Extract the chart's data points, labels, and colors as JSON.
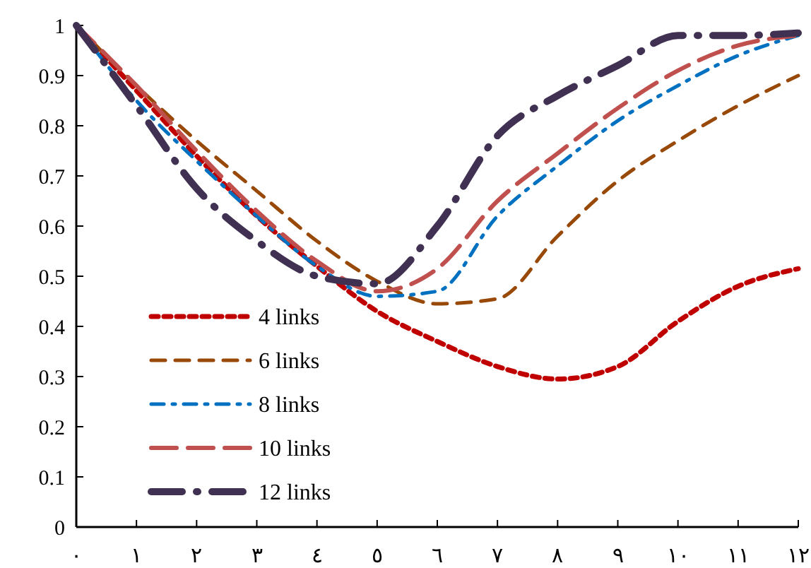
{
  "chart_data": {
    "type": "line",
    "x": [
      0,
      1,
      2,
      3,
      4,
      5,
      6,
      7,
      8,
      9,
      10,
      11,
      12
    ],
    "series": [
      {
        "name": "4 links",
        "color": "#c00000",
        "line_style": "dotted",
        "values": [
          1.0,
          0.87,
          0.74,
          0.62,
          0.52,
          0.43,
          0.37,
          0.32,
          0.295,
          0.32,
          0.41,
          0.48,
          0.515
        ]
      },
      {
        "name": "6 links",
        "color": "#984807",
        "line_style": "dashed",
        "values": [
          1.0,
          0.88,
          0.77,
          0.67,
          0.57,
          0.49,
          0.445,
          0.455,
          0.58,
          0.69,
          0.77,
          0.84,
          0.9
        ]
      },
      {
        "name": "8 links",
        "color": "#0070c0",
        "line_style": "dashed",
        "values": [
          1.0,
          0.85,
          0.73,
          0.62,
          0.52,
          0.46,
          0.47,
          0.62,
          0.72,
          0.81,
          0.88,
          0.94,
          0.98
        ]
      },
      {
        "name": "10 links",
        "color": "#c0504d",
        "line_style": "dashed",
        "values": [
          1.0,
          0.88,
          0.75,
          0.63,
          0.53,
          0.47,
          0.515,
          0.65,
          0.745,
          0.835,
          0.91,
          0.96,
          0.98
        ]
      },
      {
        "name": "12 links",
        "color": "#403152",
        "line_style": "dashed",
        "values": [
          1.0,
          0.84,
          0.675,
          0.57,
          0.5,
          0.485,
          0.6,
          0.78,
          0.86,
          0.92,
          0.98,
          0.98,
          0.985
        ]
      }
    ],
    "xlim": [
      0,
      12
    ],
    "xticks": [
      {
        "value": 0,
        "label": "٠"
      },
      {
        "value": 1,
        "label": "١"
      },
      {
        "value": 2,
        "label": "٢"
      },
      {
        "value": 3,
        "label": "٣"
      },
      {
        "value": 4,
        "label": "٤"
      },
      {
        "value": 5,
        "label": "٥"
      },
      {
        "value": 6,
        "label": "٦"
      },
      {
        "value": 7,
        "label": "٧"
      },
      {
        "value": 8,
        "label": "٨"
      },
      {
        "value": 9,
        "label": "٩"
      },
      {
        "value": 10,
        "label": "١٠"
      },
      {
        "value": 11,
        "label": "١١"
      },
      {
        "value": 12,
        "label": "١٢"
      }
    ],
    "ylim": [
      0,
      1
    ],
    "yticks": [
      0,
      0.1,
      0.2,
      0.3,
      0.4,
      0.5,
      0.6,
      0.7,
      0.8,
      0.9,
      1
    ],
    "grid": false,
    "legend": "bottom left",
    "marker": "none"
  }
}
